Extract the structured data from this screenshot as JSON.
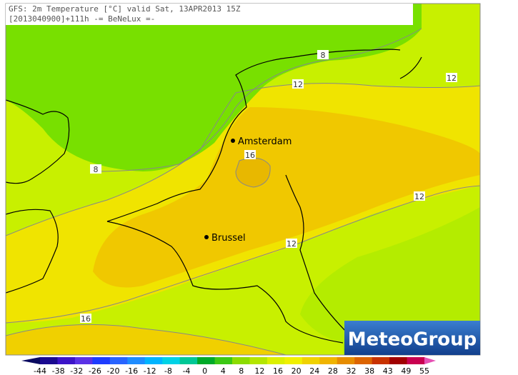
{
  "header": {
    "line1": "GFS: 2m Temperature [°C] valid Sat, 13APR2013 15Z",
    "line2": "[2013040900]+111h -= BeNeLux =-"
  },
  "cities": [
    {
      "label": "Amsterdam"
    },
    {
      "label": "Brussel"
    }
  ],
  "contour_labels": [
    "8",
    "12",
    "12",
    "8",
    "16",
    "12",
    "12",
    "16"
  ],
  "logo": "MeteoGroup",
  "legend": {
    "labels": [
      -44,
      -38,
      -32,
      -26,
      -20,
      -16,
      -12,
      -8,
      -4,
      0,
      4,
      8,
      12,
      16,
      20,
      24,
      28,
      32,
      38,
      43,
      49,
      55
    ],
    "colors": [
      "#0a0a60",
      "#1a0a90",
      "#3c14c8",
      "#5a32e6",
      "#1e3cff",
      "#2864ff",
      "#1e8cff",
      "#00b4ff",
      "#00d2e6",
      "#00c896",
      "#00aa28",
      "#3cc814",
      "#8cdc00",
      "#b4e600",
      "#dcf000",
      "#f0f000",
      "#f0d200",
      "#f0b400",
      "#e68c00",
      "#dc6400",
      "#c83200",
      "#a00000",
      "#c80050",
      "#e650b4"
    ]
  }
}
